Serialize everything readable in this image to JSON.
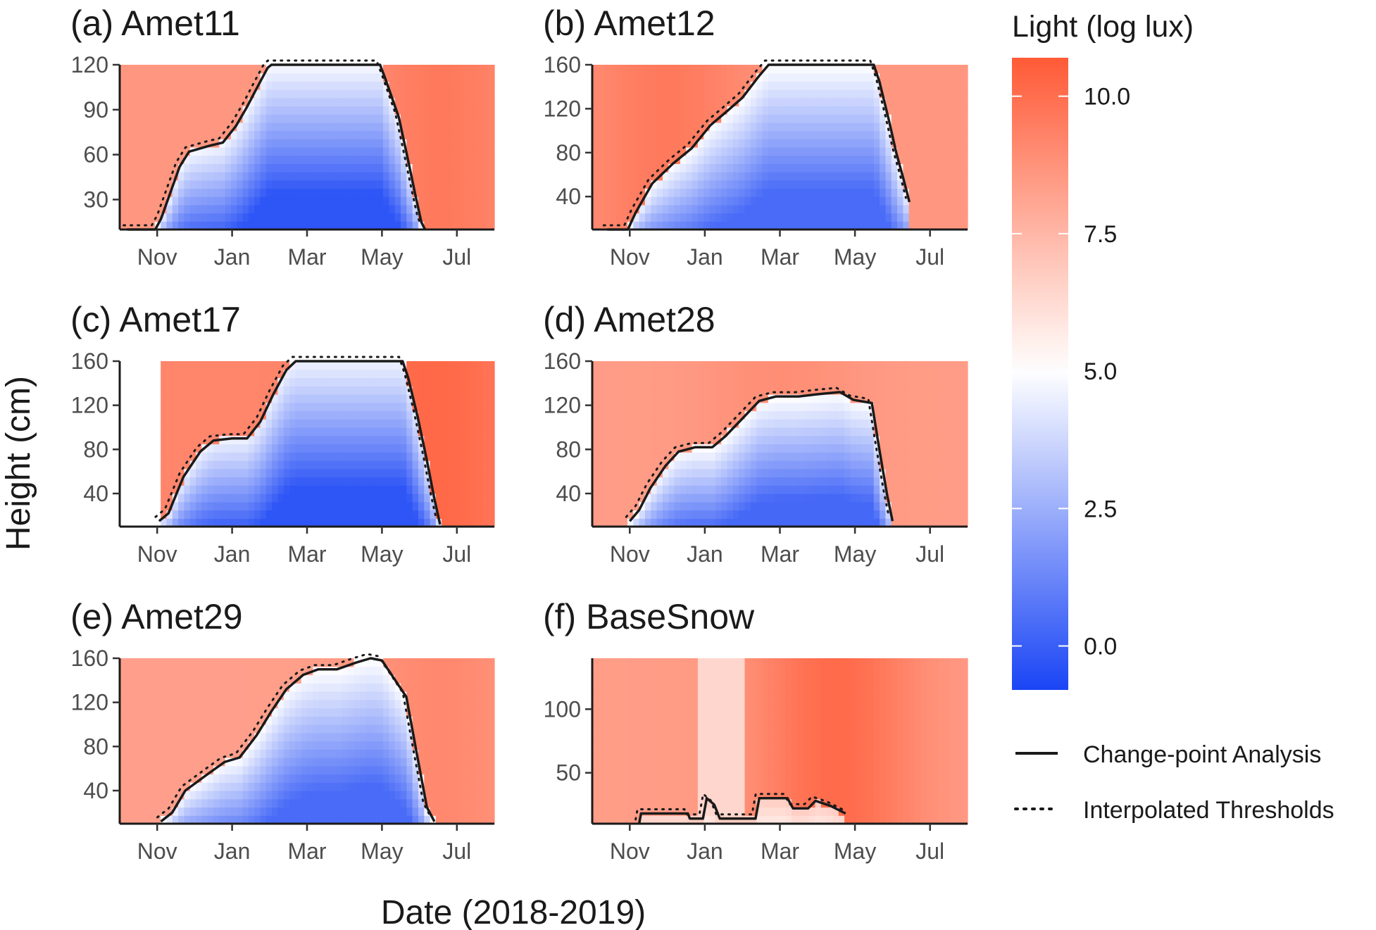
{
  "chart_data": {
    "type": "heatmap",
    "xlabel": "Date (2018-2019)",
    "ylabel": "Height (cm)",
    "x_ticks": [
      "Nov",
      "Jan",
      "Mar",
      "May",
      "Jul"
    ],
    "x_tick_months": [
      1,
      3,
      5,
      7,
      9
    ],
    "color_scale": {
      "title": "Light (log lux)",
      "min": -0.8,
      "max": 10.7,
      "ticks": [
        "0.0",
        "2.5",
        "5.0",
        "7.5",
        "10.0"
      ],
      "tick_values": [
        0,
        2.5,
        5.0,
        7.5,
        10.0
      ],
      "colors": {
        "low": "#1a45f5",
        "mid": "#ffffff",
        "high": "#ff5a36"
      }
    },
    "legend": {
      "items": [
        {
          "label": "Change-point Analysis",
          "style": "solid"
        },
        {
          "label": "Interpolated Thresholds",
          "style": "dotted"
        }
      ]
    },
    "month_axis": "months since 2018-10-01",
    "panels": [
      {
        "title": "(a) Amet11",
        "xlim": [
          0,
          10
        ],
        "ylim": [
          10,
          120
        ],
        "yticks": [
          30,
          60,
          90,
          120
        ],
        "ytick_labels": [
          "30",
          "60",
          "90",
          "120"
        ],
        "snow_depth": [
          [
            0.2,
            10
          ],
          [
            0.95,
            10
          ],
          [
            1.1,
            17
          ],
          [
            1.6,
            52
          ],
          [
            1.85,
            62
          ],
          [
            2.4,
            66
          ],
          [
            2.75,
            68
          ],
          [
            3.1,
            79
          ],
          [
            3.4,
            92
          ],
          [
            3.65,
            104
          ],
          [
            3.95,
            118
          ],
          [
            4.05,
            120
          ],
          [
            6.95,
            120
          ],
          [
            7.1,
            110
          ],
          [
            7.45,
            85
          ],
          [
            7.7,
            56
          ],
          [
            7.9,
            32
          ],
          [
            8.05,
            15
          ],
          [
            8.15,
            10
          ]
        ],
        "surface_light": 8.6,
        "peak_light": 9.6,
        "peak_month": 8.6,
        "deep_light": -0.3,
        "surface_under_snow": 4.8
      },
      {
        "title": "(b) Amet12",
        "xlim": [
          0,
          10
        ],
        "ylim": [
          10,
          160
        ],
        "yticks": [
          40,
          80,
          120,
          160
        ],
        "ytick_labels": [
          "40",
          "80",
          "120",
          "160"
        ],
        "snow_depth": [
          [
            0.4,
            10
          ],
          [
            0.95,
            10
          ],
          [
            1.15,
            25
          ],
          [
            1.6,
            52
          ],
          [
            2.15,
            70
          ],
          [
            2.65,
            84
          ],
          [
            3.15,
            105
          ],
          [
            3.6,
            118
          ],
          [
            4.0,
            130
          ],
          [
            4.45,
            150
          ],
          [
            4.7,
            160
          ],
          [
            7.5,
            160
          ],
          [
            7.65,
            145
          ],
          [
            7.9,
            110
          ],
          [
            8.1,
            80
          ],
          [
            8.3,
            55
          ],
          [
            8.45,
            35
          ]
        ],
        "surface_light": 8.6,
        "peak_light": 9.6,
        "peak_month": 2.0,
        "deep_light": 0.4,
        "surface_under_snow": 5.0
      },
      {
        "title": "(c) Amet17",
        "xlim": [
          0,
          10
        ],
        "ylim": [
          10,
          160
        ],
        "yticks": [
          40,
          80,
          120,
          160
        ],
        "ytick_labels": [
          "40",
          "80",
          "120",
          "160"
        ],
        "data_start_month": 1.05,
        "snow_depth": [
          [
            1.05,
            15
          ],
          [
            1.3,
            22
          ],
          [
            1.7,
            55
          ],
          [
            2.15,
            78
          ],
          [
            2.5,
            88
          ],
          [
            3.0,
            90
          ],
          [
            3.4,
            90
          ],
          [
            3.75,
            105
          ],
          [
            4.1,
            130
          ],
          [
            4.45,
            152
          ],
          [
            4.7,
            160
          ],
          [
            7.55,
            160
          ],
          [
            7.7,
            145
          ],
          [
            7.95,
            110
          ],
          [
            8.2,
            70
          ],
          [
            8.4,
            35
          ],
          [
            8.55,
            12
          ]
        ],
        "surface_light": 9.2,
        "peak_light": 10.2,
        "peak_month": 8.4,
        "deep_light": -0.3,
        "surface_under_snow": 4.6
      },
      {
        "title": "(d) Amet28",
        "xlim": [
          0,
          10
        ],
        "ylim": [
          10,
          160
        ],
        "yticks": [
          40,
          80,
          120,
          160
        ],
        "ytick_labels": [
          "40",
          "80",
          "120",
          "160"
        ],
        "snow_depth": [
          [
            1.0,
            15
          ],
          [
            1.25,
            25
          ],
          [
            1.55,
            45
          ],
          [
            1.95,
            65
          ],
          [
            2.3,
            78
          ],
          [
            2.75,
            82
          ],
          [
            3.2,
            82
          ],
          [
            3.55,
            92
          ],
          [
            4.0,
            108
          ],
          [
            4.45,
            124
          ],
          [
            4.9,
            128
          ],
          [
            5.5,
            128
          ],
          [
            6.0,
            130
          ],
          [
            6.6,
            132
          ],
          [
            6.95,
            125
          ],
          [
            7.45,
            122
          ],
          [
            7.65,
            80
          ],
          [
            7.85,
            40
          ],
          [
            8.0,
            15
          ]
        ],
        "surface_light": 8.4,
        "peak_light": 8.9,
        "peak_month": 5.0,
        "deep_light": 0.3,
        "surface_under_snow": 5.0
      },
      {
        "title": "(e) Amet29",
        "xlim": [
          0,
          10
        ],
        "ylim": [
          10,
          160
        ],
        "yticks": [
          40,
          80,
          120,
          160
        ],
        "ytick_labels": [
          "40",
          "80",
          "120",
          "160"
        ],
        "snow_depth": [
          [
            1.1,
            12
          ],
          [
            1.4,
            20
          ],
          [
            1.75,
            40
          ],
          [
            2.35,
            55
          ],
          [
            2.8,
            66
          ],
          [
            3.2,
            70
          ],
          [
            3.65,
            90
          ],
          [
            4.05,
            112
          ],
          [
            4.45,
            132
          ],
          [
            4.9,
            145
          ],
          [
            5.3,
            150
          ],
          [
            5.8,
            150
          ],
          [
            6.3,
            156
          ],
          [
            6.7,
            160
          ],
          [
            7.0,
            158
          ],
          [
            7.2,
            148
          ],
          [
            7.65,
            125
          ],
          [
            7.95,
            70
          ],
          [
            8.2,
            25
          ],
          [
            8.4,
            12
          ]
        ],
        "surface_light": 8.3,
        "peak_light": 9.1,
        "peak_month": 8.6,
        "deep_light": 0.4,
        "surface_under_snow": 5.0
      },
      {
        "title": "(f) BaseSnow",
        "xlim": [
          0,
          10
        ],
        "ylim": [
          10,
          140
        ],
        "yticks": [
          50,
          100
        ],
        "ytick_labels": [
          "50",
          "100"
        ],
        "snow_depth": [
          [
            1.25,
            10
          ],
          [
            1.3,
            18
          ],
          [
            2.55,
            18
          ],
          [
            2.6,
            14
          ],
          [
            2.95,
            14
          ],
          [
            3.05,
            30
          ],
          [
            3.25,
            25
          ],
          [
            3.4,
            14
          ],
          [
            4.35,
            14
          ],
          [
            4.45,
            30
          ],
          [
            5.2,
            30
          ],
          [
            5.35,
            22
          ],
          [
            5.75,
            22
          ],
          [
            5.95,
            28
          ],
          [
            6.35,
            24
          ],
          [
            6.75,
            18
          ]
        ],
        "surface_light": 8.4,
        "peak_light": 10.1,
        "peak_month": 6.5,
        "deep_light": 5.6,
        "surface_under_snow": 6.8,
        "dark_month_range": [
          2.8,
          4.0
        ],
        "dark_light": 6.4
      }
    ]
  }
}
